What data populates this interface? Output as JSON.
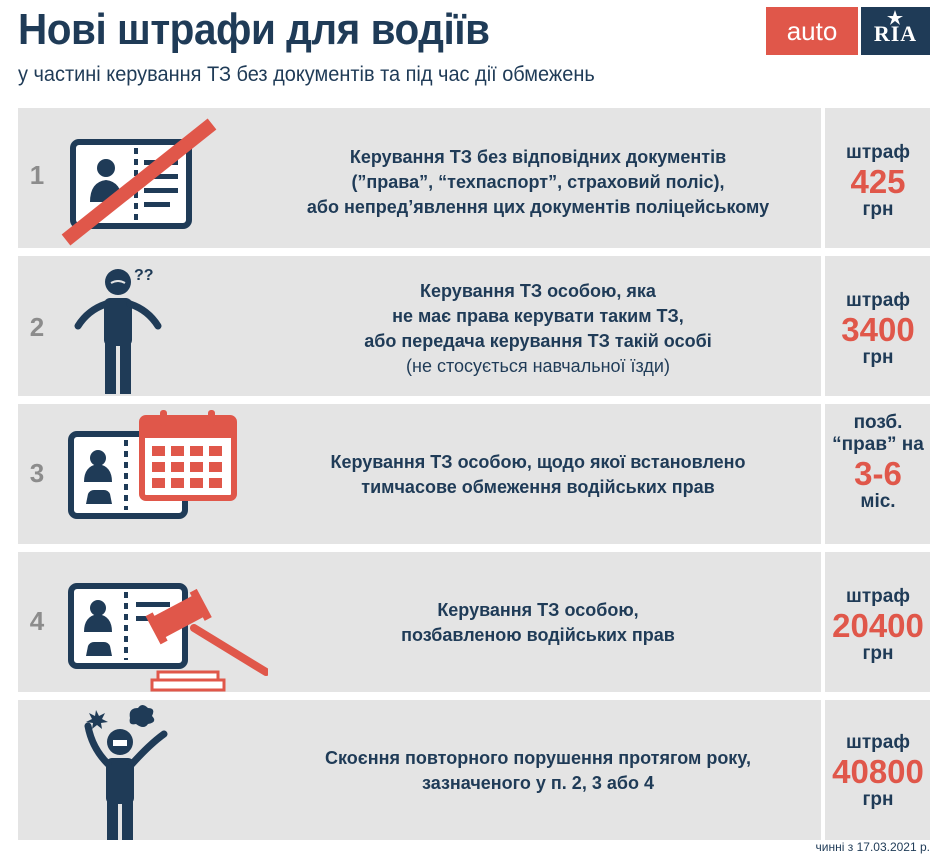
{
  "header": {
    "title": "Нові штрафи для водіїв",
    "subtitle": "у частині керування ТЗ без документів та під час дії обмежень",
    "logo_left": "auto",
    "logo_right": "RIA"
  },
  "colors": {
    "accent": "#e0574a",
    "navy": "#1f3b57",
    "panel": "#e4e4e4",
    "number": "#8c8c8c"
  },
  "rows": [
    {
      "num": "1",
      "icon": "crossed-license-icon",
      "lines": [
        "Керування ТЗ без відповідних документів",
        "(”права”, “техпаспорт”, страховий поліс),",
        "або непред’явлення цих документів поліцейському"
      ],
      "penalty_label": "штраф",
      "penalty_amount": "425",
      "penalty_unit": "грн"
    },
    {
      "num": "2",
      "icon": "confused-person-icon",
      "lines": [
        "Керування ТЗ особою, яка",
        "не має права керувати таким ТЗ,",
        "або передача керування ТЗ такій особі",
        "(не стосується навчальної їзди)"
      ],
      "penalty_label": "штраф",
      "penalty_amount": "3400",
      "penalty_unit": "грн"
    },
    {
      "num": "3",
      "icon": "license-calendar-icon",
      "lines": [
        "Керування ТЗ особою, щодо якої встановлено",
        "тимчасове обмеження водійських прав"
      ],
      "penalty_label": "позб.",
      "penalty_label2": "“прав” на",
      "penalty_amount": "3-6",
      "penalty_unit": "міс."
    },
    {
      "num": "4",
      "icon": "license-gavel-icon",
      "lines": [
        "Керування ТЗ особою,",
        "позбавленою водійських прав"
      ],
      "penalty_label": "штраф",
      "penalty_amount": "20400",
      "penalty_unit": "грн"
    },
    {
      "num": "",
      "icon": "angry-person-icon",
      "lines": [
        "Скоєння повторного порушення протягом року,",
        "зазначеного у п. 2, 3 або 4"
      ],
      "penalty_label": "штраф",
      "penalty_amount": "40800",
      "penalty_unit": "грн"
    }
  ],
  "footer": "чинні з 17.03.2021 р."
}
